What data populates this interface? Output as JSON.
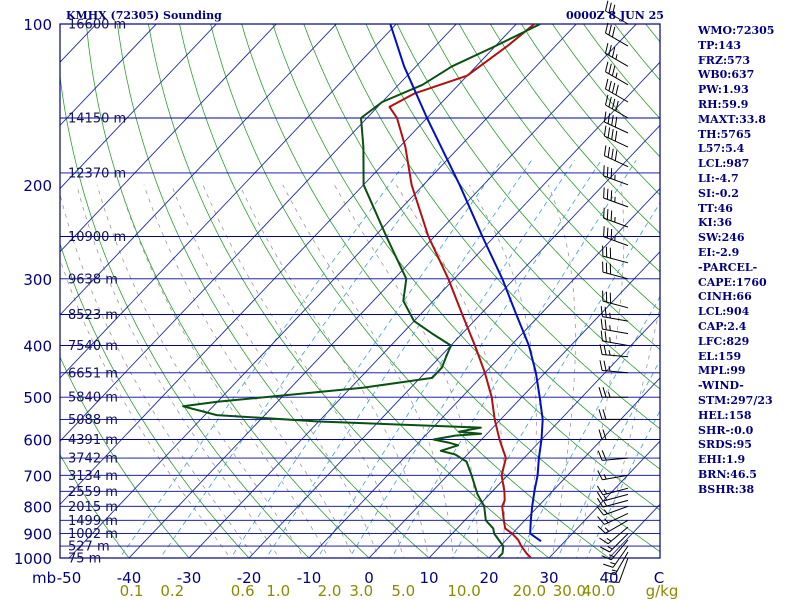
{
  "header": {
    "title": "KMHX (72305) Sounding",
    "time": "0000Z  8 JUN 25"
  },
  "sidebar": {
    "lines": [
      "WMO:72305",
      "TP:143",
      "FRZ:573",
      "WB0:637",
      "PW:1.93",
      "RH:59.9",
      "MAXT:33.8",
      "TH:5765",
      "L57:5.4",
      "LCL:987",
      "LI:-4.7",
      "SI:-0.2",
      "TT:46",
      "KI:36",
      "SW:246",
      "EI:-2.9",
      "-PARCEL-",
      "CAPE:1760",
      "CINH:66",
      "LCL:904",
      "CAP:2.4",
      "LFC:829",
      "EL:159",
      "MPL:99",
      "-WIND-",
      "STM:297/23",
      "HEL:158",
      "SHR-:0.0",
      "SRDS:95",
      "EHI:1.9",
      "BRN:46.5",
      "BSHR:38"
    ]
  },
  "colors": {
    "axis": "#000080",
    "isobar": "#0000a0",
    "isotherm": "#1c2ea0",
    "dry_adiabat": "#2ca02c",
    "moist_adiabat": "#9a9a9a",
    "mixing_ratio": "#3aa0d8",
    "temperature": "#b01010",
    "dewpoint": "#0a5010",
    "parcel": "#0010c0",
    "mix_labels": "#8b8b00"
  },
  "chart_data": {
    "type": "line",
    "title": "KMHX (72305) Sounding",
    "axes": {
      "pressure_ticks": [
        100,
        200,
        300,
        400,
        500,
        600,
        700,
        800,
        900,
        1000
      ],
      "pressure_range": [
        1000,
        100
      ],
      "pressure_label": "mb",
      "temperature_ticks": [
        -50,
        -40,
        -30,
        -20,
        -10,
        0,
        10,
        20,
        30,
        40
      ],
      "temperature_unit": "C",
      "mixing_ratio_ticks": [
        "0.1",
        "0.2",
        "0.6",
        "1.0",
        "2.0",
        "3.0",
        "5.0",
        "10.0",
        "20.0",
        "30.0",
        "40.0"
      ],
      "mixing_ratio_unit": "g/kg"
    },
    "height_labels": [
      {
        "p": 100,
        "label": "16600 m"
      },
      {
        "p": 150,
        "label": "14150 m"
      },
      {
        "p": 190,
        "label": "12370 m"
      },
      {
        "p": 250,
        "label": "10900 m"
      },
      {
        "p": 300,
        "label": "9638 m"
      },
      {
        "p": 350,
        "label": "8523 m"
      },
      {
        "p": 400,
        "label": "7540 m"
      },
      {
        "p": 450,
        "label": "6651 m"
      },
      {
        "p": 500,
        "label": "5840 m"
      },
      {
        "p": 550,
        "label": "5088 m"
      },
      {
        "p": 600,
        "label": "4391 m"
      },
      {
        "p": 650,
        "label": "3742 m"
      },
      {
        "p": 700,
        "label": "3134 m"
      },
      {
        "p": 750,
        "label": "2559 m"
      },
      {
        "p": 800,
        "label": "2015 m"
      },
      {
        "p": 850,
        "label": "1499 m"
      },
      {
        "p": 900,
        "label": "1002 m"
      },
      {
        "p": 950,
        "label": "527 m"
      },
      {
        "p": 1000,
        "label": "75 m"
      }
    ],
    "series": [
      {
        "name": "Temperature",
        "points": [
          {
            "p": 1008,
            "t": 26.5
          },
          {
            "p": 1000,
            "t": 27
          },
          {
            "p": 980,
            "t": 25.5
          },
          {
            "p": 950,
            "t": 23.5
          },
          {
            "p": 925,
            "t": 22
          },
          {
            "p": 900,
            "t": 20
          },
          {
            "p": 880,
            "t": 18
          },
          {
            "p": 850,
            "t": 16.5
          },
          {
            "p": 800,
            "t": 14
          },
          {
            "p": 780,
            "t": 13.5
          },
          {
            "p": 750,
            "t": 12
          },
          {
            "p": 700,
            "t": 9
          },
          {
            "p": 650,
            "t": 7
          },
          {
            "p": 600,
            "t": 3
          },
          {
            "p": 550,
            "t": -1
          },
          {
            "p": 500,
            "t": -5
          },
          {
            "p": 450,
            "t": -10
          },
          {
            "p": 400,
            "t": -16
          },
          {
            "p": 350,
            "t": -23
          },
          {
            "p": 300,
            "t": -31
          },
          {
            "p": 250,
            "t": -41
          },
          {
            "p": 200,
            "t": -52
          },
          {
            "p": 170,
            "t": -59
          },
          {
            "p": 150,
            "t": -65
          },
          {
            "p": 143,
            "t": -68
          },
          {
            "p": 135,
            "t": -66
          },
          {
            "p": 125,
            "t": -60
          },
          {
            "p": 110,
            "t": -58
          },
          {
            "p": 100,
            "t": -57
          }
        ]
      },
      {
        "name": "Dewpoint",
        "points": [
          {
            "p": 1008,
            "t": 21.5
          },
          {
            "p": 1000,
            "t": 21.5
          },
          {
            "p": 980,
            "t": 21.5
          },
          {
            "p": 950,
            "t": 20.5
          },
          {
            "p": 900,
            "t": 17
          },
          {
            "p": 880,
            "t": 16
          },
          {
            "p": 850,
            "t": 13.5
          },
          {
            "p": 800,
            "t": 11
          },
          {
            "p": 760,
            "t": 8
          },
          {
            "p": 700,
            "t": 4
          },
          {
            "p": 660,
            "t": 1
          },
          {
            "p": 640,
            "t": -2
          },
          {
            "p": 630,
            "t": -5
          },
          {
            "p": 615,
            "t": -3
          },
          {
            "p": 608,
            "t": -5
          },
          {
            "p": 600,
            "t": -8
          },
          {
            "p": 590,
            "t": -5
          },
          {
            "p": 585,
            "t": -1
          },
          {
            "p": 580,
            "t": -5
          },
          {
            "p": 570,
            "t": -2
          },
          {
            "p": 555,
            "t": -30
          },
          {
            "p": 540,
            "t": -48
          },
          {
            "p": 520,
            "t": -55
          },
          {
            "p": 510,
            "t": -50
          },
          {
            "p": 480,
            "t": -28
          },
          {
            "p": 460,
            "t": -18
          },
          {
            "p": 440,
            "t": -18
          },
          {
            "p": 420,
            "t": -19
          },
          {
            "p": 400,
            "t": -20
          },
          {
            "p": 380,
            "t": -25
          },
          {
            "p": 360,
            "t": -30
          },
          {
            "p": 330,
            "t": -35
          },
          {
            "p": 300,
            "t": -38
          },
          {
            "p": 250,
            "t": -48
          },
          {
            "p": 200,
            "t": -60
          },
          {
            "p": 170,
            "t": -66
          },
          {
            "p": 150,
            "t": -71
          },
          {
            "p": 140,
            "t": -70
          },
          {
            "p": 130,
            "t": -66
          },
          {
            "p": 120,
            "t": -64
          },
          {
            "p": 110,
            "t": -60
          },
          {
            "p": 100,
            "t": -56
          }
        ]
      },
      {
        "name": "Parcel",
        "points": [
          {
            "p": 930,
            "t": 26
          },
          {
            "p": 900,
            "t": 23
          },
          {
            "p": 850,
            "t": 21
          },
          {
            "p": 800,
            "t": 19
          },
          {
            "p": 750,
            "t": 17
          },
          {
            "p": 700,
            "t": 15
          },
          {
            "p": 650,
            "t": 12.5
          },
          {
            "p": 600,
            "t": 10
          },
          {
            "p": 550,
            "t": 7
          },
          {
            "p": 500,
            "t": 3
          },
          {
            "p": 450,
            "t": -1.5
          },
          {
            "p": 400,
            "t": -7
          },
          {
            "p": 350,
            "t": -14
          },
          {
            "p": 300,
            "t": -22
          },
          {
            "p": 250,
            "t": -32
          },
          {
            "p": 200,
            "t": -44
          },
          {
            "p": 150,
            "t": -60
          },
          {
            "p": 120,
            "t": -72
          },
          {
            "p": 100,
            "t": -81
          }
        ]
      }
    ],
    "wind_barbs": [
      {
        "p": 1000,
        "dir": 200,
        "spd": 10
      },
      {
        "p": 975,
        "dir": 210,
        "spd": 15
      },
      {
        "p": 950,
        "dir": 215,
        "spd": 15
      },
      {
        "p": 925,
        "dir": 220,
        "spd": 15
      },
      {
        "p": 900,
        "dir": 225,
        "spd": 15
      },
      {
        "p": 875,
        "dir": 230,
        "spd": 15
      },
      {
        "p": 850,
        "dir": 240,
        "spd": 15
      },
      {
        "p": 825,
        "dir": 245,
        "spd": 15
      },
      {
        "p": 800,
        "dir": 250,
        "spd": 15
      },
      {
        "p": 780,
        "dir": 255,
        "spd": 15
      },
      {
        "p": 760,
        "dir": 255,
        "spd": 15
      },
      {
        "p": 740,
        "dir": 255,
        "spd": 15
      },
      {
        "p": 700,
        "dir": 260,
        "spd": 15
      },
      {
        "p": 650,
        "dir": 265,
        "spd": 20
      },
      {
        "p": 600,
        "dir": 270,
        "spd": 20
      },
      {
        "p": 550,
        "dir": 270,
        "spd": 20
      },
      {
        "p": 500,
        "dir": 270,
        "spd": 25
      },
      {
        "p": 450,
        "dir": 275,
        "spd": 25
      },
      {
        "p": 420,
        "dir": 275,
        "spd": 25
      },
      {
        "p": 400,
        "dir": 280,
        "spd": 25
      },
      {
        "p": 380,
        "dir": 280,
        "spd": 25
      },
      {
        "p": 360,
        "dir": 280,
        "spd": 25
      },
      {
        "p": 340,
        "dir": 285,
        "spd": 30
      },
      {
        "p": 300,
        "dir": 285,
        "spd": 30
      },
      {
        "p": 280,
        "dir": 285,
        "spd": 30
      },
      {
        "p": 260,
        "dir": 290,
        "spd": 35
      },
      {
        "p": 240,
        "dir": 290,
        "spd": 35
      },
      {
        "p": 220,
        "dir": 290,
        "spd": 35
      },
      {
        "p": 200,
        "dir": 290,
        "spd": 35
      },
      {
        "p": 185,
        "dir": 295,
        "spd": 40
      },
      {
        "p": 170,
        "dir": 295,
        "spd": 40
      },
      {
        "p": 160,
        "dir": 295,
        "spd": 40
      },
      {
        "p": 150,
        "dir": 300,
        "spd": 40
      },
      {
        "p": 140,
        "dir": 300,
        "spd": 40
      },
      {
        "p": 130,
        "dir": 300,
        "spd": 35
      },
      {
        "p": 120,
        "dir": 300,
        "spd": 35
      },
      {
        "p": 110,
        "dir": 300,
        "spd": 30
      },
      {
        "p": 100,
        "dir": 300,
        "spd": 30
      }
    ]
  }
}
